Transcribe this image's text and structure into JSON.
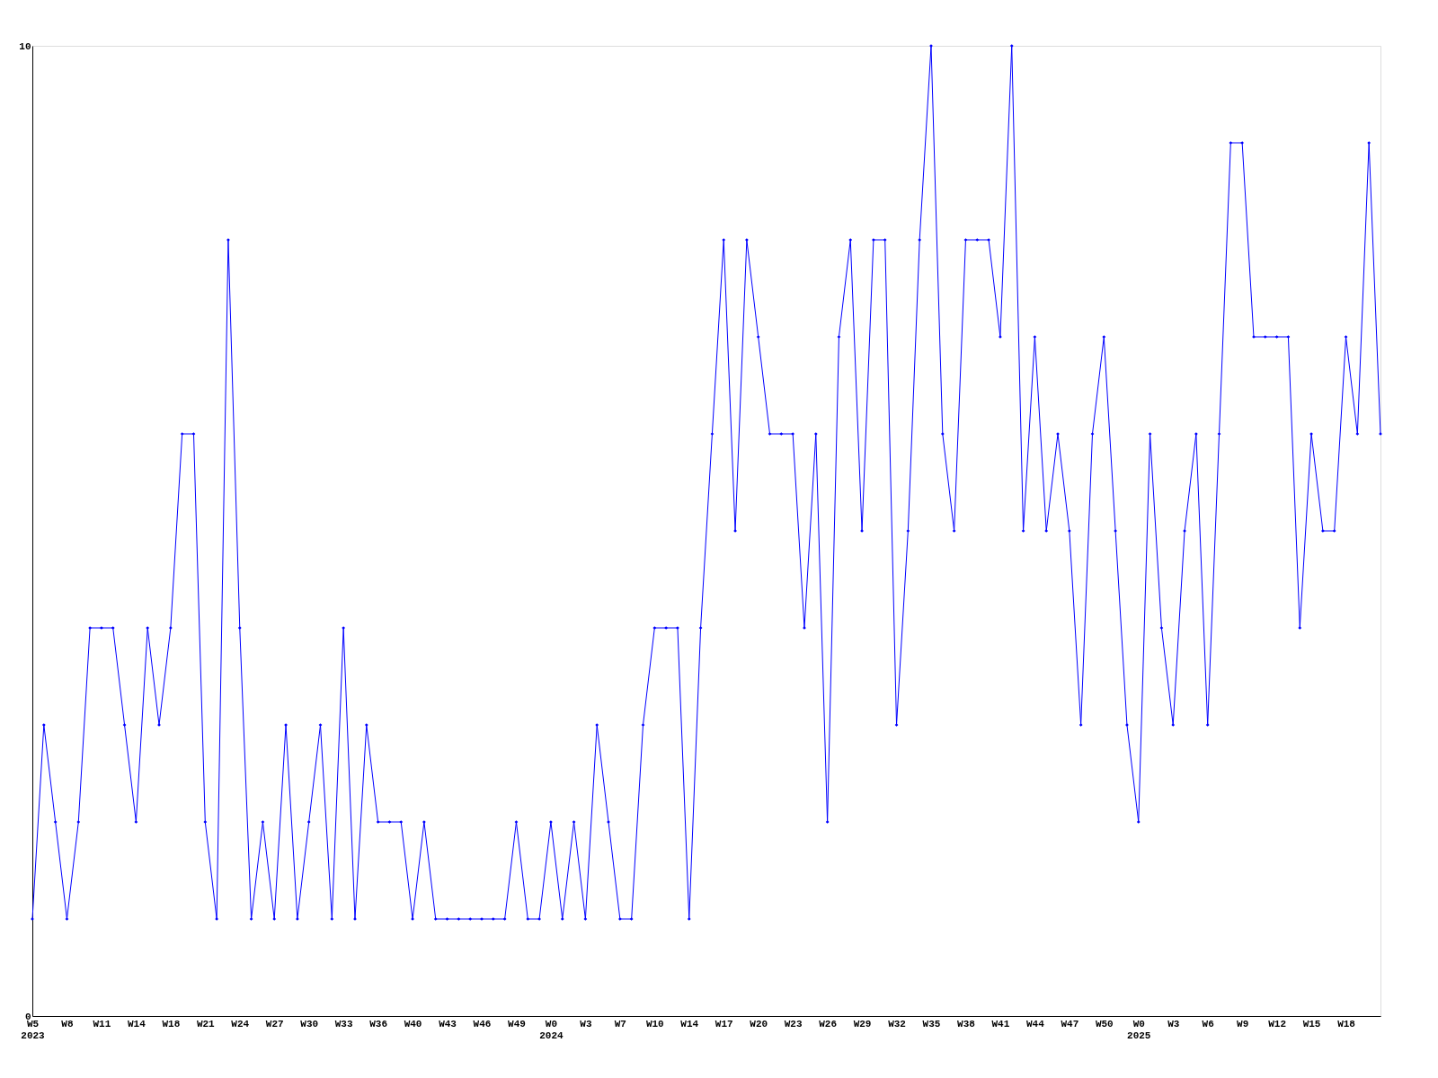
{
  "chart_data": {
    "type": "line",
    "categories": [
      "W5 2023",
      null,
      null,
      "W8",
      null,
      null,
      "W11",
      null,
      null,
      "W14",
      null,
      null,
      "W18",
      null,
      null,
      "W21",
      null,
      null,
      "W24",
      null,
      null,
      "W27",
      null,
      null,
      "W30",
      null,
      null,
      "W33",
      null,
      null,
      "W36",
      null,
      null,
      "W40",
      null,
      null,
      "W43",
      null,
      null,
      "W46",
      null,
      null,
      "W49",
      null,
      null,
      "W0 2024",
      null,
      null,
      "W3",
      null,
      null,
      "W7",
      null,
      null,
      "W10",
      null,
      null,
      "W14",
      null,
      null,
      "W17",
      null,
      null,
      "W20",
      null,
      null,
      "W23",
      null,
      null,
      "W26",
      null,
      null,
      "W29",
      null,
      null,
      "W32",
      null,
      null,
      "W35",
      null,
      null,
      "W38",
      null,
      null,
      "W41",
      null,
      null,
      "W44",
      null,
      null,
      "W47",
      null,
      null,
      "W50",
      null,
      null,
      "W0 2025",
      null,
      null,
      "W3",
      null,
      null,
      "W6",
      null,
      null,
      "W9",
      null,
      null,
      "W12",
      null,
      null,
      "W15",
      null,
      null,
      "W18",
      null,
      null,
      null
    ],
    "series": [
      {
        "color": "#0000ff",
        "values": [
          1,
          3,
          2,
          1,
          2,
          4,
          4,
          4,
          3,
          2,
          4,
          3,
          4,
          6,
          6,
          2,
          1,
          8,
          4,
          1,
          2,
          1,
          3,
          1,
          2,
          3,
          1,
          4,
          1,
          3,
          2,
          2,
          2,
          1,
          2,
          1,
          1,
          1,
          1,
          1,
          1,
          1,
          2,
          1,
          1,
          2,
          1,
          2,
          1,
          3,
          2,
          1,
          1,
          3,
          4,
          4,
          4,
          1,
          4,
          6,
          8,
          5,
          8,
          7,
          6,
          6,
          6,
          4,
          6,
          2,
          7,
          8,
          5,
          8,
          8,
          3,
          5,
          8,
          10,
          6,
          5,
          8,
          8,
          8,
          7,
          10,
          5,
          7,
          5,
          6,
          5,
          3,
          6,
          7,
          5,
          3,
          2,
          6,
          4,
          3,
          5,
          6,
          3,
          6,
          9,
          9,
          7,
          7,
          7,
          7,
          4,
          6,
          5,
          5,
          7,
          6,
          9,
          6
        ]
      }
    ],
    "ylim": [
      0,
      10
    ],
    "yticks": [
      0,
      10
    ],
    "grid": false,
    "marker": "diamond",
    "line_style": "solid"
  }
}
